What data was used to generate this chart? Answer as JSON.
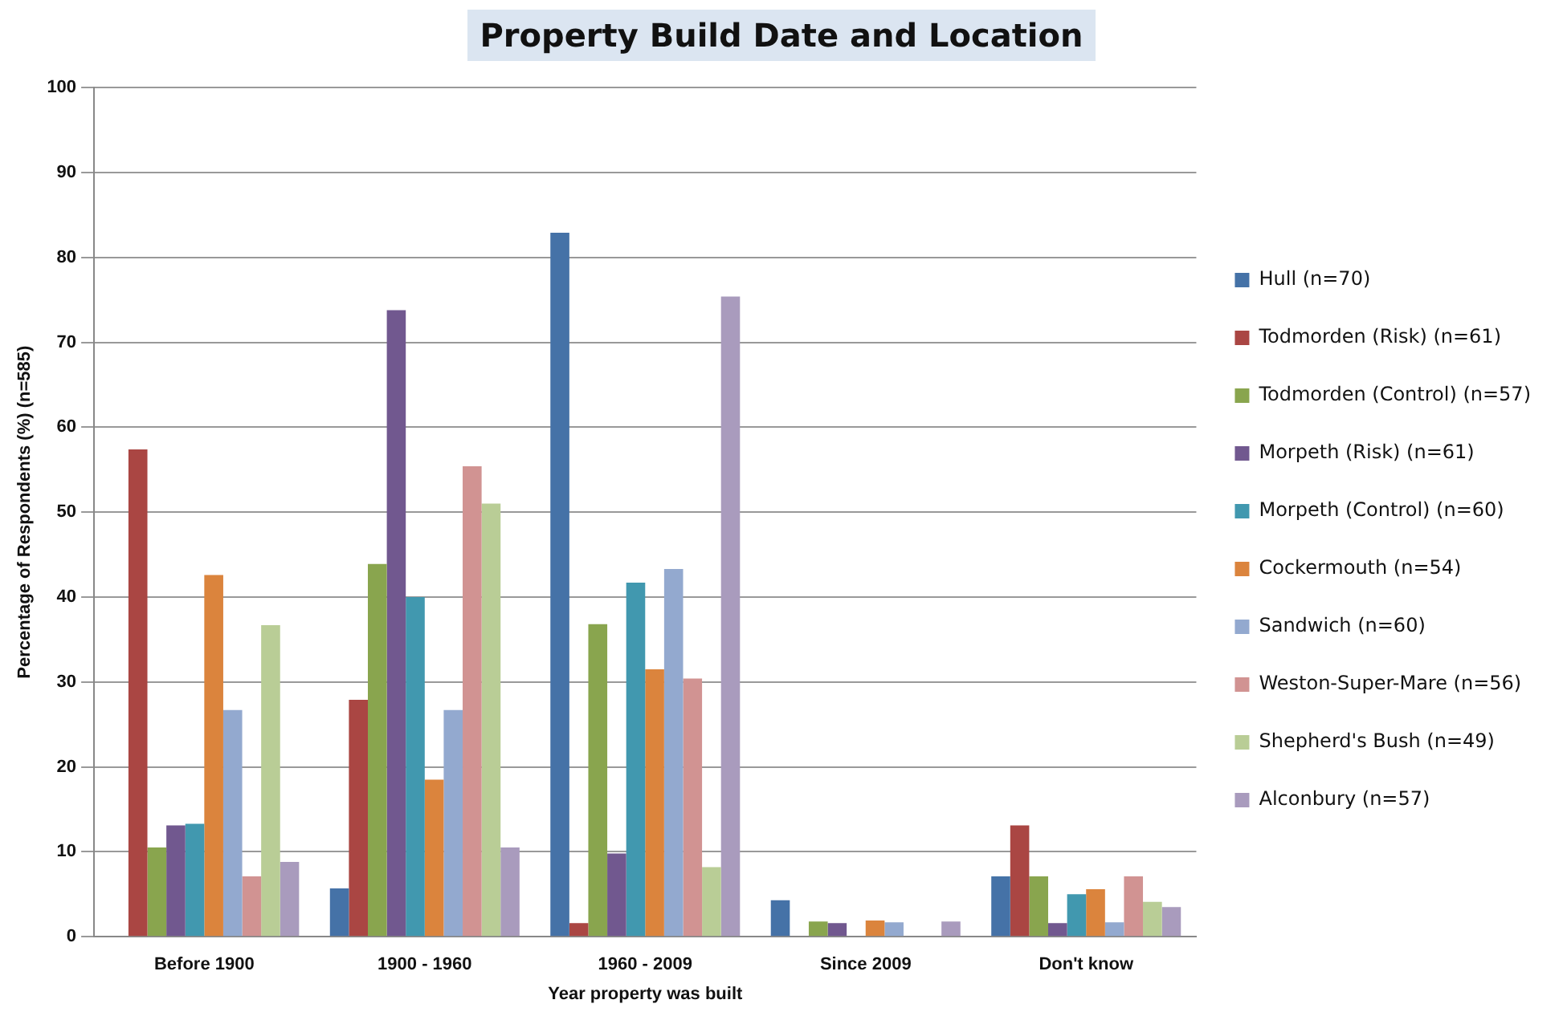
{
  "chart_data": {
    "type": "bar",
    "title": "Property Build Date and Location",
    "xlabel": "Year property was built",
    "ylabel": "Percentage of Respondents (%) (n=585)",
    "categories": [
      "Before 1900",
      "1900 - 1960",
      "1960 - 2009",
      "Since 2009",
      "Don't know"
    ],
    "series": [
      {
        "name": "Hull (n=70)",
        "color": "#4572a7",
        "values": [
          0,
          5.7,
          82.9,
          4.3,
          7.1
        ]
      },
      {
        "name": "Todmorden (Risk) (n=61)",
        "color": "#aa4643",
        "values": [
          57.4,
          27.9,
          1.6,
          0,
          13.1
        ]
      },
      {
        "name": "Todmorden (Control) (n=57)",
        "color": "#89a54e",
        "values": [
          10.5,
          43.9,
          36.8,
          1.8,
          7.1
        ]
      },
      {
        "name": "Morpeth (Risk) (n=61)",
        "color": "#71588f",
        "values": [
          13.1,
          73.8,
          9.8,
          1.6,
          1.6
        ]
      },
      {
        "name": "Morpeth (Control) (n=60)",
        "color": "#4198af",
        "values": [
          13.3,
          40,
          41.7,
          0,
          5.0
        ]
      },
      {
        "name": "Cockermouth (n=54)",
        "color": "#db843d",
        "values": [
          42.6,
          18.5,
          31.5,
          1.9,
          5.6
        ]
      },
      {
        "name": "Sandwich (n=60)",
        "color": "#93a9cf",
        "values": [
          26.7,
          26.7,
          43.3,
          1.7,
          1.7
        ]
      },
      {
        "name": "Weston-Super-Mare (n=56)",
        "color": "#d19392",
        "values": [
          7.1,
          55.4,
          30.4,
          0,
          7.1
        ]
      },
      {
        "name": "Shepherd's Bush (n=49)",
        "color": "#b9cd96",
        "values": [
          36.7,
          51,
          8.2,
          0,
          4.1
        ]
      },
      {
        "name": "Alconbury (n=57)",
        "color": "#a99bbd",
        "values": [
          8.8,
          10.5,
          75.4,
          1.8,
          3.5
        ]
      }
    ],
    "ylim": [
      0,
      100
    ],
    "yticks": [
      0,
      10,
      20,
      30,
      40,
      50,
      60,
      70,
      80,
      90,
      100
    ],
    "grid": "y",
    "legend": "right"
  }
}
